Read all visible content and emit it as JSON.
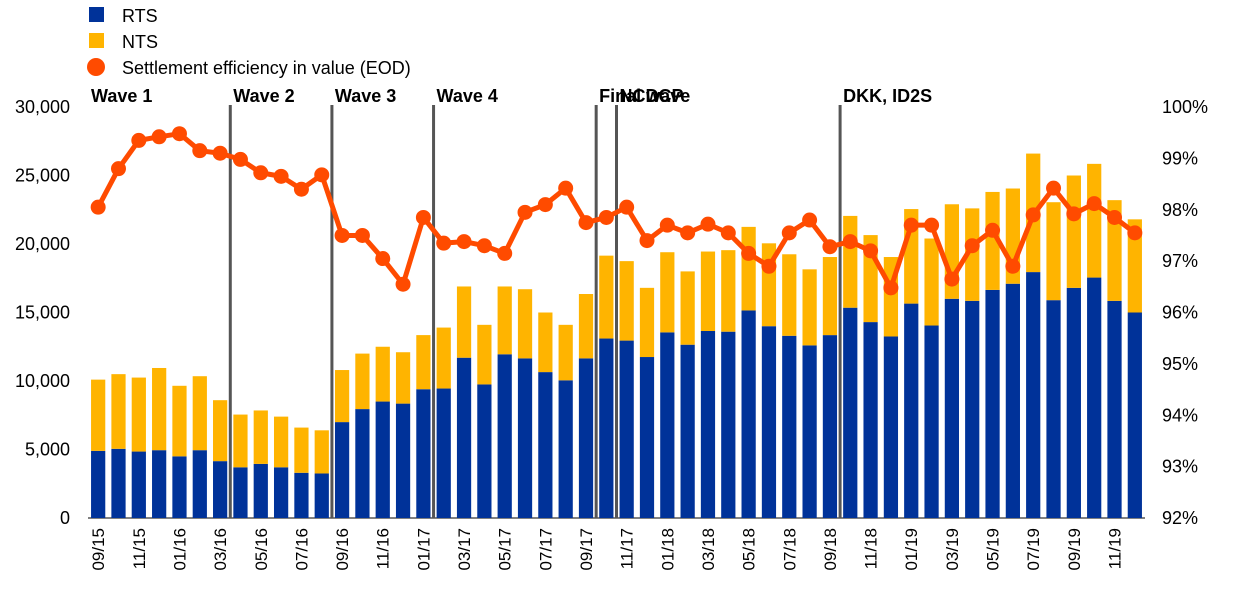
{
  "chart_data": {
    "type": "bar",
    "stacked": true,
    "categories": [
      "09/15",
      "10/15",
      "11/15",
      "12/15",
      "01/16",
      "02/16",
      "03/16",
      "04/16",
      "05/16",
      "06/16",
      "07/16",
      "08/16",
      "09/16",
      "10/16",
      "11/16",
      "12/16",
      "01/17",
      "02/17",
      "03/17",
      "04/17",
      "05/17",
      "06/17",
      "07/17",
      "08/17",
      "09/17",
      "10/17",
      "11/17",
      "12/17",
      "01/18",
      "02/18",
      "03/18",
      "04/18",
      "05/18",
      "06/18",
      "07/18",
      "08/18",
      "09/18",
      "10/18",
      "11/18",
      "12/18",
      "01/19",
      "02/19",
      "03/19",
      "04/19",
      "05/19",
      "06/19",
      "07/19",
      "08/19",
      "09/19",
      "10/19",
      "11/19",
      "12/19"
    ],
    "tick_labels": [
      "09/15",
      "11/15",
      "01/16",
      "03/16",
      "05/16",
      "07/16",
      "09/16",
      "11/16",
      "01/17",
      "03/17",
      "05/17",
      "07/17",
      "09/17",
      "11/17",
      "01/18",
      "03/18",
      "05/18",
      "07/18",
      "09/18",
      "11/18",
      "01/19",
      "03/19",
      "05/19",
      "07/19",
      "09/19",
      "11/19"
    ],
    "series": [
      {
        "name": "RTS",
        "axis": "left",
        "color": "#003299",
        "values": [
          4900,
          5050,
          4850,
          4950,
          4500,
          4950,
          4150,
          3700,
          3950,
          3700,
          3300,
          3250,
          7000,
          7950,
          8500,
          8350,
          9400,
          9450,
          11700,
          9750,
          11950,
          11650,
          10650,
          10050,
          11650,
          13100,
          12950,
          11750,
          13550,
          12650,
          13650,
          13600,
          15150,
          14000,
          13300,
          12600,
          13350,
          15350,
          14300,
          13250,
          15650,
          14050,
          16000,
          15850,
          16650,
          17100,
          17950,
          15900,
          16800,
          17550,
          15850,
          15000
        ]
      },
      {
        "name": "NTS",
        "axis": "left",
        "color": "#FFB400",
        "values": [
          5200,
          5450,
          5400,
          6000,
          5150,
          5400,
          4450,
          3850,
          3900,
          3700,
          3300,
          3150,
          3800,
          4050,
          4000,
          3750,
          3950,
          4450,
          5200,
          4350,
          4950,
          5050,
          4350,
          4050,
          4700,
          6050,
          5800,
          5050,
          5850,
          5350,
          5800,
          5950,
          6100,
          6050,
          5950,
          5550,
          5700,
          6700,
          6350,
          5800,
          6900,
          6350,
          6900,
          6750,
          7150,
          6950,
          8650,
          7150,
          8200,
          8300,
          7350,
          6800
        ]
      },
      {
        "name": "Settlement efficiency in value (EOD)",
        "axis": "right",
        "type": "line",
        "color": "#FF4B00",
        "values": [
          98.05,
          98.8,
          99.35,
          99.42,
          99.48,
          99.15,
          99.1,
          98.98,
          98.72,
          98.65,
          98.4,
          98.68,
          97.5,
          97.5,
          97.05,
          96.55,
          97.85,
          97.35,
          97.38,
          97.3,
          97.15,
          97.95,
          98.1,
          98.42,
          97.75,
          97.85,
          98.05,
          97.4,
          97.7,
          97.55,
          97.72,
          97.55,
          97.15,
          96.9,
          97.55,
          97.8,
          97.28,
          97.38,
          97.2,
          96.48,
          97.7,
          97.7,
          96.65,
          97.3,
          97.6,
          96.9,
          97.9,
          98.42,
          97.92,
          98.12,
          97.85,
          97.55
        ]
      }
    ],
    "y_left": {
      "min": 0,
      "max": 30000,
      "ticks": [
        "0",
        "5,000",
        "10,000",
        "15,000",
        "20,000",
        "25,000",
        "30,000"
      ]
    },
    "y_right": {
      "min": 92,
      "max": 100,
      "ticks": [
        "92%",
        "93%",
        "94%",
        "95%",
        "96%",
        "97%",
        "98%",
        "99%",
        "100%"
      ]
    },
    "events": [
      {
        "label": "Wave 1",
        "after_index": null
      },
      {
        "label": "Wave 2",
        "after_index": 6
      },
      {
        "label": "Wave 3",
        "after_index": 11
      },
      {
        "label": "Wave 4",
        "after_index": 16
      },
      {
        "label": "Final wave",
        "after_index": 24
      },
      {
        "label": "NCDCP",
        "after_index": 25
      },
      {
        "label": "DKK, ID2S",
        "after_index": 36
      }
    ],
    "legend": {
      "position": "top-left"
    },
    "grid": false
  }
}
